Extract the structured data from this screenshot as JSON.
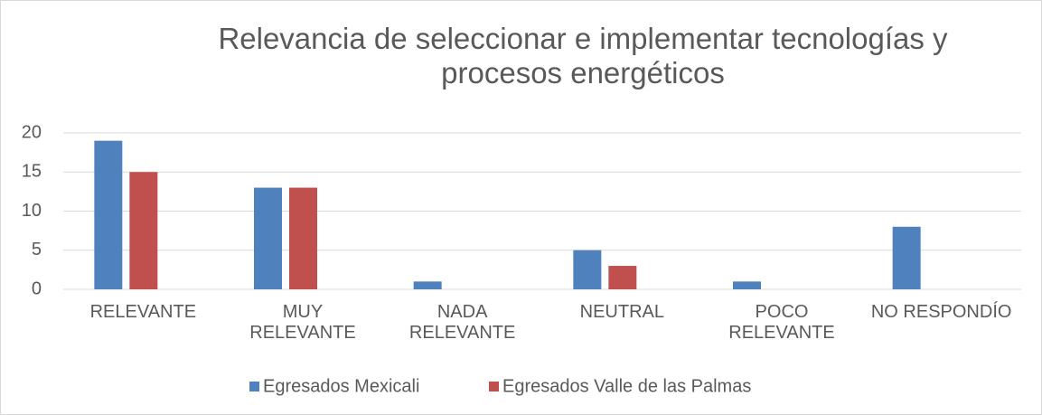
{
  "chart_data": {
    "type": "bar",
    "title": "Relevancia de seleccionar e implementar tecnologías y procesos energéticos",
    "categories": [
      "RELEVANTE",
      "MUY RELEVANTE",
      "NADA RELEVANTE",
      "NEUTRAL",
      "POCO RELEVANTE",
      "NO RESPONDÍO"
    ],
    "series": [
      {
        "name": "Egresados Mexicali",
        "color": "#4f81bd",
        "values": [
          19,
          13,
          1,
          5,
          1,
          8
        ]
      },
      {
        "name": "Egresados Valle de las Palmas",
        "color": "#c0504d",
        "values": [
          15,
          13,
          0,
          3,
          0,
          0
        ]
      }
    ],
    "ylim": [
      0,
      20
    ],
    "yticks": [
      0,
      5,
      10,
      15,
      20
    ],
    "grid": true,
    "legend": "bottom"
  }
}
